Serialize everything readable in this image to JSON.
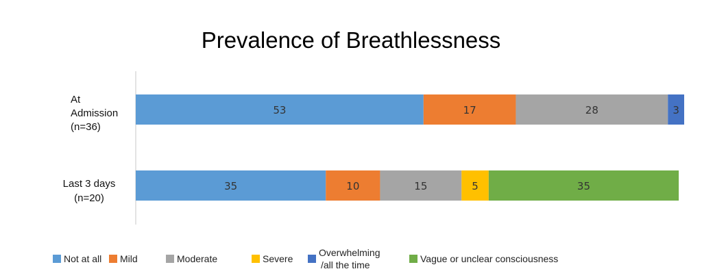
{
  "chart_data": {
    "type": "bar",
    "orientation": "horizontal",
    "stacked": true,
    "title": "Prevalence of Breathlessness",
    "categories": [
      [
        "At",
        "Admission",
        "(n=36)"
      ],
      [
        "Last 3 days",
        "(n=20)"
      ]
    ],
    "series": [
      {
        "name": "Not at all",
        "color": "#5b9bd5",
        "values": [
          53,
          35
        ]
      },
      {
        "name": "Mild",
        "color": "#ed7d31",
        "values": [
          17,
          10
        ]
      },
      {
        "name": "Moderate",
        "color": "#a5a5a5",
        "values": [
          28,
          15
        ]
      },
      {
        "name": "Severe",
        "color": "#ffc000",
        "values": [
          0,
          5
        ]
      },
      {
        "name": "Overwhelming /all the time",
        "color": "#4472c4",
        "values": [
          3,
          0
        ]
      },
      {
        "name": "Vague or unclear consciousness",
        "color": "#70ad47",
        "values": [
          0,
          35
        ]
      }
    ],
    "xlim": [
      0,
      101
    ],
    "legend_position": "bottom",
    "grid": false
  }
}
